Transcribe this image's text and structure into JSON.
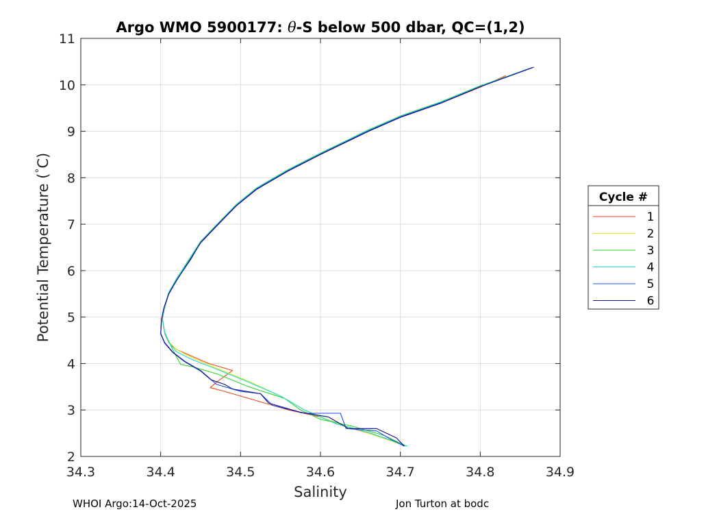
{
  "chart_data": {
    "type": "line",
    "title_prefix": "Argo WMO 5900177: ",
    "title_symbol": "θ",
    "title_suffix": "-S below 500 dbar,  QC=(1,2)",
    "xlabel": "Salinity",
    "ylabel_main": "Potential Temperature (",
    "ylabel_degree": "°",
    "ylabel_unit": "C)",
    "xlim": [
      34.3,
      34.9
    ],
    "ylim": [
      2,
      11
    ],
    "xticks": [
      34.3,
      34.4,
      34.5,
      34.6,
      34.7,
      34.8,
      34.9
    ],
    "xtick_labels": [
      "34.3",
      "34.4",
      "34.5",
      "34.6",
      "34.7",
      "34.8",
      "34.9"
    ],
    "yticks": [
      2,
      3,
      4,
      5,
      6,
      7,
      8,
      9,
      10,
      11
    ],
    "ytick_labels": [
      "2",
      "3",
      "4",
      "5",
      "6",
      "7",
      "8",
      "9",
      "10",
      "11"
    ],
    "grid": true,
    "legend": {
      "title": "Cycle #",
      "placement": "outside-right"
    },
    "series": [
      {
        "name": "1",
        "color": "#e8461b",
        "x": [
          34.832,
          34.8,
          34.75,
          34.7,
          34.66,
          34.63,
          34.6,
          34.56,
          34.52,
          34.495,
          34.475,
          34.45,
          34.435,
          34.42,
          34.41,
          34.405,
          34.402,
          34.405,
          34.41,
          34.42,
          34.44,
          34.46,
          34.49,
          34.47,
          34.462,
          34.48,
          34.5,
          34.53,
          34.56,
          34.6,
          34.64,
          34.68,
          34.705
        ],
        "y": [
          10.2,
          9.95,
          9.6,
          9.3,
          9.0,
          8.75,
          8.5,
          8.15,
          7.75,
          7.4,
          7.05,
          6.6,
          6.2,
          5.8,
          5.5,
          5.2,
          4.95,
          4.65,
          4.45,
          4.3,
          4.15,
          4.0,
          3.85,
          3.6,
          3.48,
          3.4,
          3.3,
          3.15,
          3.0,
          2.85,
          2.6,
          2.4,
          2.25
        ]
      },
      {
        "name": "2",
        "color": "#dfe61a",
        "x": [
          34.862,
          34.8,
          34.75,
          34.7,
          34.66,
          34.63,
          34.6,
          34.56,
          34.52,
          34.495,
          34.475,
          34.45,
          34.435,
          34.42,
          34.41,
          34.405,
          34.402,
          34.405,
          34.41,
          34.42,
          34.44,
          34.47,
          34.51,
          34.55,
          34.58,
          34.62,
          34.66,
          34.708
        ],
        "y": [
          10.35,
          9.97,
          9.62,
          9.32,
          9.02,
          8.77,
          8.52,
          8.17,
          7.77,
          7.42,
          7.07,
          6.62,
          6.22,
          5.82,
          5.52,
          5.22,
          4.97,
          4.67,
          4.47,
          4.3,
          4.12,
          3.9,
          3.62,
          3.3,
          3.0,
          2.72,
          2.5,
          2.22
        ]
      },
      {
        "name": "3",
        "color": "#2ed42e",
        "x": [
          34.86,
          34.8,
          34.75,
          34.7,
          34.66,
          34.63,
          34.6,
          34.56,
          34.52,
          34.495,
          34.475,
          34.45,
          34.435,
          34.42,
          34.41,
          34.405,
          34.402,
          34.405,
          34.41,
          34.415,
          34.425,
          34.44,
          34.47,
          34.51,
          34.555,
          34.575,
          34.6,
          34.64,
          34.68,
          34.708
        ],
        "y": [
          10.34,
          9.98,
          9.63,
          9.33,
          9.03,
          8.78,
          8.53,
          8.18,
          7.78,
          7.43,
          7.08,
          6.63,
          6.23,
          5.83,
          5.53,
          5.23,
          4.98,
          4.68,
          4.48,
          4.3,
          3.98,
          3.93,
          3.78,
          3.5,
          3.25,
          3.0,
          2.8,
          2.65,
          2.45,
          2.22
        ]
      },
      {
        "name": "4",
        "color": "#1ad8d8",
        "x": [
          34.863,
          34.8,
          34.75,
          34.7,
          34.66,
          34.63,
          34.6,
          34.56,
          34.52,
          34.495,
          34.475,
          34.45,
          34.435,
          34.42,
          34.41,
          34.405,
          34.402,
          34.405,
          34.41,
          34.42,
          34.44,
          34.47,
          34.51,
          34.55,
          34.58,
          34.62,
          34.66,
          34.709
        ],
        "y": [
          10.36,
          9.97,
          9.62,
          9.32,
          9.02,
          8.77,
          8.52,
          8.17,
          7.77,
          7.42,
          7.07,
          6.62,
          6.22,
          5.82,
          5.52,
          5.22,
          4.97,
          4.67,
          4.45,
          4.25,
          4.08,
          3.88,
          3.6,
          3.3,
          3.0,
          2.7,
          2.52,
          2.22
        ]
      },
      {
        "name": "5",
        "color": "#1a4fe0",
        "x": [
          34.865,
          34.8,
          34.75,
          34.7,
          34.66,
          34.63,
          34.6,
          34.56,
          34.52,
          34.495,
          34.475,
          34.45,
          34.438,
          34.42,
          34.41,
          34.404,
          34.401,
          34.4,
          34.405,
          34.415,
          34.43,
          34.45,
          34.47,
          34.5,
          34.525,
          34.54,
          34.58,
          34.625,
          34.632,
          34.67,
          34.69,
          34.705
        ],
        "y": [
          10.37,
          9.96,
          9.61,
          9.31,
          9.01,
          8.76,
          8.51,
          8.16,
          7.76,
          7.41,
          7.06,
          6.61,
          6.25,
          5.8,
          5.5,
          5.2,
          4.95,
          4.65,
          4.45,
          4.25,
          4.05,
          3.85,
          3.55,
          3.4,
          3.35,
          3.1,
          2.93,
          2.93,
          2.6,
          2.55,
          2.35,
          2.22
        ]
      },
      {
        "name": "6",
        "color": "#0b0b8c",
        "x": [
          34.867,
          34.8,
          34.75,
          34.7,
          34.66,
          34.63,
          34.6,
          34.56,
          34.52,
          34.495,
          34.475,
          34.45,
          34.437,
          34.42,
          34.41,
          34.404,
          34.401,
          34.4,
          34.405,
          34.415,
          34.43,
          34.45,
          34.463,
          34.48,
          34.49,
          34.525,
          34.535,
          34.575,
          34.61,
          34.635,
          34.67,
          34.695,
          34.705
        ],
        "y": [
          10.38,
          9.96,
          9.6,
          9.3,
          9.0,
          8.75,
          8.5,
          8.15,
          7.75,
          7.4,
          7.05,
          6.6,
          6.24,
          5.79,
          5.49,
          5.19,
          4.94,
          4.64,
          4.44,
          4.24,
          4.04,
          3.84,
          3.65,
          3.55,
          3.45,
          3.35,
          3.15,
          2.95,
          2.85,
          2.6,
          2.6,
          2.4,
          2.22
        ]
      }
    ]
  },
  "footer": {
    "left": "WHOI Argo:14-Oct-2025",
    "right": "Jon Turton at bodc"
  }
}
